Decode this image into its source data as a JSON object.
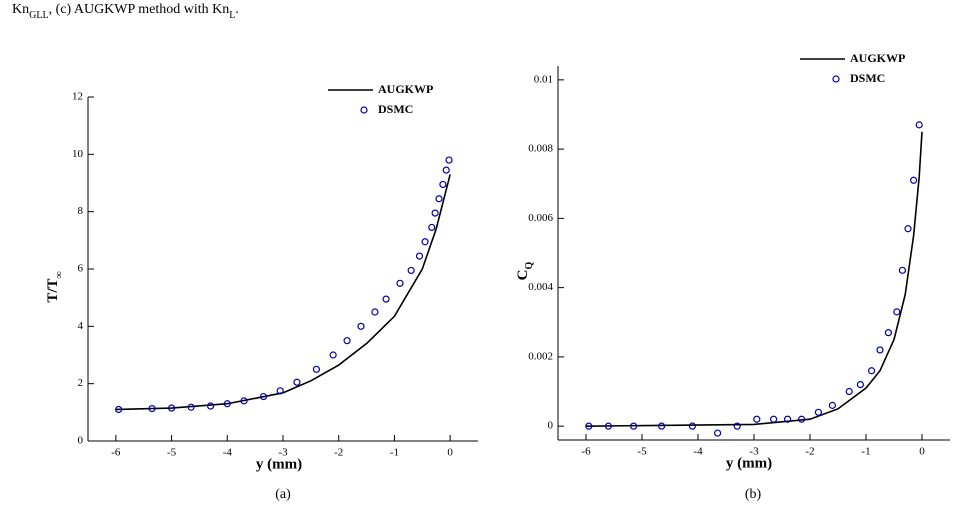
{
  "caption_top": [
    {
      "text": "Kn",
      "sub": "GLL"
    },
    {
      "text": ", (c) AUGKWP method with Kn",
      "sub": "L"
    },
    {
      "text": "."
    }
  ],
  "chart_data": [
    {
      "type": "line",
      "label": "(a)",
      "xlabel": "y (mm)",
      "ylabel": {
        "text": "T/T",
        "sub": "∞"
      },
      "xlim": [
        -6.5,
        0.5
      ],
      "xticks": [
        -6,
        -5,
        -4,
        -3,
        -2,
        -1,
        0
      ],
      "ylim": [
        0,
        12
      ],
      "yticks": [
        0,
        2,
        4,
        6,
        8,
        10,
        12
      ],
      "series": [
        {
          "name": "AUGKWP",
          "type": "line",
          "color": "#000000",
          "x": [
            -6,
            -5,
            -4,
            -3,
            -2.5,
            -2,
            -1.5,
            -1,
            -0.5,
            -0.25,
            0
          ],
          "values": [
            1.1,
            1.15,
            1.3,
            1.68,
            2.1,
            2.65,
            3.4,
            4.35,
            6.0,
            7.4,
            9.3
          ]
        },
        {
          "name": "DSMC",
          "type": "scatter",
          "color": "#0000aa",
          "x": [
            -5.95,
            -5.35,
            -5.0,
            -4.65,
            -4.3,
            -4.0,
            -3.7,
            -3.35,
            -3.05,
            -2.75,
            -2.4,
            -2.1,
            -1.85,
            -1.6,
            -1.35,
            -1.15,
            -0.9,
            -0.7,
            -0.55,
            -0.45,
            -0.33,
            -0.27,
            -0.2,
            -0.13,
            -0.07,
            -0.02
          ],
          "values": [
            1.1,
            1.13,
            1.15,
            1.18,
            1.22,
            1.3,
            1.4,
            1.55,
            1.75,
            2.05,
            2.5,
            3.0,
            3.5,
            4.0,
            4.5,
            4.95,
            5.5,
            5.95,
            6.45,
            6.95,
            7.45,
            7.95,
            8.45,
            8.95,
            9.45,
            9.8
          ]
        }
      ]
    },
    {
      "type": "line",
      "label": "(b)",
      "xlabel": "y (mm)",
      "ylabel": {
        "text": "C",
        "sub": "Q"
      },
      "xlim": [
        -6.5,
        0.5
      ],
      "xticks": [
        -6,
        -5,
        -4,
        -3,
        -2,
        -1,
        0
      ],
      "ylim": [
        -0.0004,
        0.0104
      ],
      "yticks": [
        0,
        0.002,
        0.004,
        0.006,
        0.008,
        0.01
      ],
      "series": [
        {
          "name": "AUGKWP",
          "type": "line",
          "color": "#000000",
          "x": [
            -6,
            -3,
            -2,
            -1.5,
            -1,
            -0.75,
            -0.5,
            -0.3,
            -0.15,
            -0.05,
            0
          ],
          "values": [
            0,
            5e-05,
            0.0002,
            0.0005,
            0.0011,
            0.0016,
            0.0025,
            0.0038,
            0.0055,
            0.0072,
            0.0085
          ]
        },
        {
          "name": "DSMC",
          "type": "scatter",
          "color": "#0000aa",
          "x": [
            -5.95,
            -5.6,
            -5.15,
            -4.65,
            -4.1,
            -3.65,
            -3.3,
            -2.95,
            -2.65,
            -2.4,
            -2.15,
            -1.85,
            -1.6,
            -1.3,
            -1.1,
            -0.9,
            -0.75,
            -0.6,
            -0.45,
            -0.35,
            -0.25,
            -0.15,
            -0.05
          ],
          "values": [
            0,
            0,
            0,
            0,
            0,
            -0.0002,
            0,
            0.0002,
            0.0002,
            0.0002,
            0.0002,
            0.0004,
            0.0006,
            0.001,
            0.0012,
            0.0016,
            0.0022,
            0.0027,
            0.0033,
            0.0045,
            0.0057,
            0.0071,
            0.0087
          ]
        }
      ]
    }
  ]
}
